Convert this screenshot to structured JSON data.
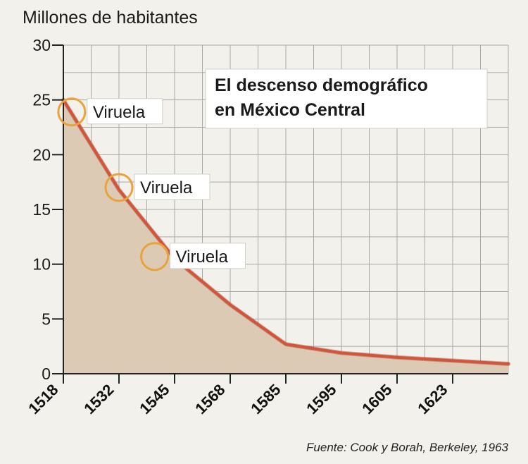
{
  "chart_data": {
    "type": "area",
    "title_lines": [
      "El descenso demográfico",
      "en México Central"
    ],
    "ylabel": "Millones de habitantes",
    "xlabel": "",
    "ylim": [
      0,
      30
    ],
    "yticks": [
      "0",
      "5",
      "10",
      "15",
      "20",
      "25",
      "30"
    ],
    "categories": [
      "1518",
      "1532",
      "1545",
      "1568",
      "1585",
      "1595",
      "1605",
      "1623"
    ],
    "values": [
      25,
      16.8,
      10.5,
      6.3,
      2.7,
      1.9,
      1.5,
      0.9
    ],
    "annotations": [
      {
        "label": "Viruela",
        "x_index": 0.15,
        "y": 23.9
      },
      {
        "label": "Viruela",
        "x_index": 1.0,
        "y": 17
      },
      {
        "label": "Viruela",
        "x_index": 1.64,
        "y": 10.7
      }
    ],
    "source": "Fuente: Cook y Borah, Berkeley, 1963",
    "grid": true,
    "colors": {
      "line": "#d2553a",
      "fill": "#dccab4",
      "grid": "#a9a9a9",
      "marker": "#e9a33c",
      "label_box": "#ffffff"
    }
  }
}
